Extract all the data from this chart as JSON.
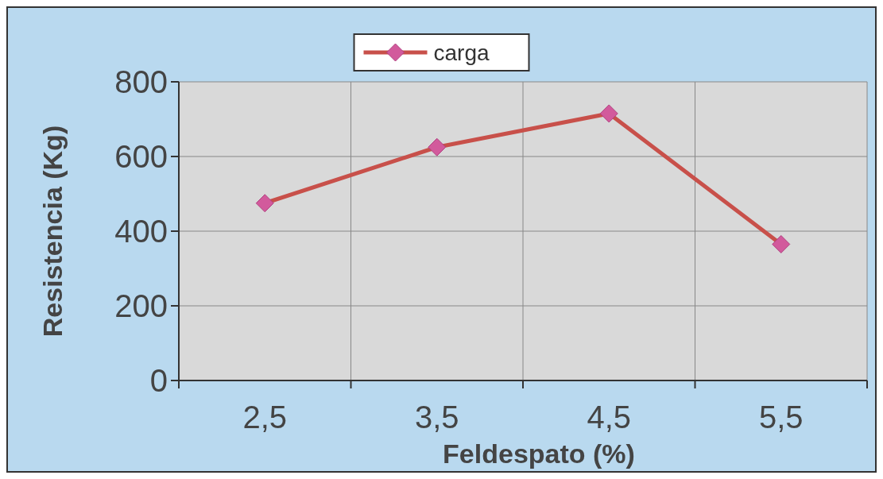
{
  "chart_data": {
    "type": "line",
    "xlabel": "Feldespato (%)",
    "ylabel": "Resistencia (Kg)",
    "categories": [
      "2,5",
      "3,5",
      "4,5",
      "5,5"
    ],
    "series": [
      {
        "name": "carga",
        "color": "#c8504a",
        "values": [
          475,
          625,
          715,
          365
        ]
      }
    ],
    "ylim": [
      0,
      800
    ],
    "yticks": [
      0,
      200,
      400,
      600,
      800
    ],
    "grid": true,
    "legend": "top",
    "marker": "diamond",
    "line_style": "solid"
  }
}
